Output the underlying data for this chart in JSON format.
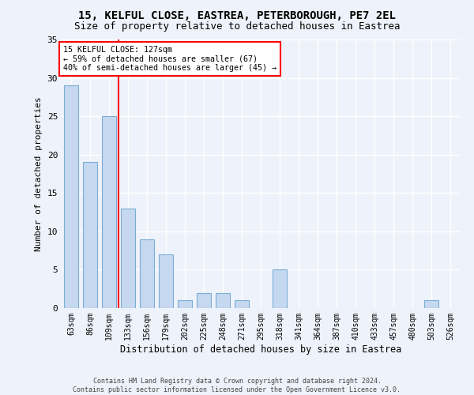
{
  "title1": "15, KELFUL CLOSE, EASTREA, PETERBOROUGH, PE7 2EL",
  "title2": "Size of property relative to detached houses in Eastrea",
  "xlabel": "Distribution of detached houses by size in Eastrea",
  "ylabel": "Number of detached properties",
  "footnote": "Contains HM Land Registry data © Crown copyright and database right 2024.\nContains public sector information licensed under the Open Government Licence v3.0.",
  "categories": [
    "63sqm",
    "86sqm",
    "109sqm",
    "133sqm",
    "156sqm",
    "179sqm",
    "202sqm",
    "225sqm",
    "248sqm",
    "271sqm",
    "295sqm",
    "318sqm",
    "341sqm",
    "364sqm",
    "387sqm",
    "410sqm",
    "433sqm",
    "457sqm",
    "480sqm",
    "503sqm",
    "526sqm"
  ],
  "values": [
    29,
    19,
    25,
    13,
    9,
    7,
    1,
    2,
    2,
    1,
    0,
    5,
    0,
    0,
    0,
    0,
    0,
    0,
    0,
    1,
    0
  ],
  "bar_color": "#c5d8f0",
  "bar_edge_color": "#7aadd4",
  "red_line_index": 3,
  "property_label": "15 KELFUL CLOSE: 127sqm",
  "annotation_line1": "← 59% of detached houses are smaller (67)",
  "annotation_line2": "40% of semi-detached houses are larger (45) →",
  "ylim": [
    0,
    35
  ],
  "yticks": [
    0,
    5,
    10,
    15,
    20,
    25,
    30,
    35
  ],
  "background_color": "#eef2fa",
  "grid_color": "#ffffff",
  "title1_fontsize": 10,
  "title2_fontsize": 9,
  "xlabel_fontsize": 8.5,
  "ylabel_fontsize": 8,
  "bar_width": 0.75
}
